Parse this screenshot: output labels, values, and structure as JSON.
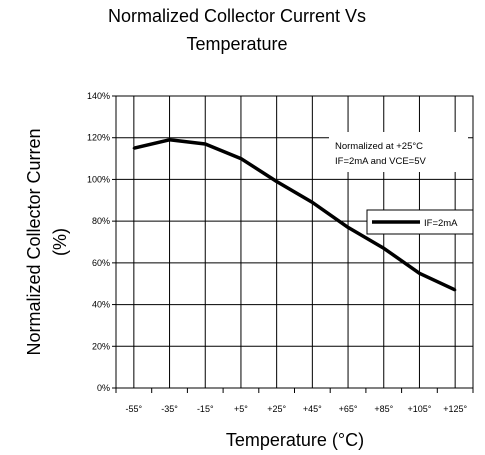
{
  "chart_data": {
    "type": "line",
    "title_line1": "Normalized Collector Current Vs",
    "title_line2": "Temperature",
    "xlabel": "Temperature (°C)",
    "ylabel_line1": "Normalized Collector Curren",
    "ylabel_line2": "(%)",
    "x": [
      -55,
      -35,
      -15,
      5,
      25,
      45,
      65,
      85,
      105,
      125
    ],
    "x_tick_labels": [
      "-55°",
      "-35°",
      "-15°",
      "+5°",
      "+25°",
      "+45°",
      "+65°",
      "+85°",
      "+105°",
      "+125°"
    ],
    "y_tick_values": [
      0,
      20,
      40,
      60,
      80,
      100,
      120,
      140
    ],
    "y_tick_labels": [
      "0%",
      "20%",
      "40%",
      "60%",
      "80%",
      "100%",
      "120%",
      "140%"
    ],
    "ylim": [
      0,
      140
    ],
    "grid": true,
    "series": [
      {
        "name": "IF=2mA",
        "values": [
          115,
          119,
          117,
          110,
          99,
          89,
          77,
          67,
          55,
          47
        ],
        "color": "#000000"
      }
    ],
    "annotation_line1": "Normalized at +25°C",
    "annotation_line2": "IF=2mA and VCE=5V",
    "legend_position": "right"
  }
}
